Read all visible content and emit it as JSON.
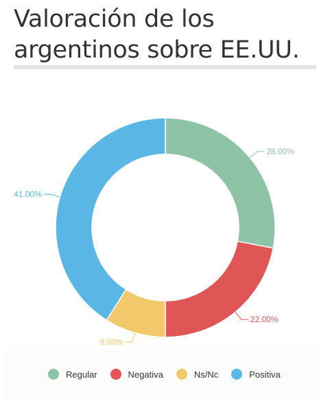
{
  "chart_data": {
    "type": "pie",
    "variant": "donut",
    "title": "Valoración de los argentinos sobre EE.UU.",
    "slices": [
      {
        "label": "Regular",
        "value": 28.0,
        "value_label": "28.00%",
        "color": "#8fc3a6"
      },
      {
        "label": "Negativa",
        "value": 22.0,
        "value_label": "22.00%",
        "color": "#e05555"
      },
      {
        "label": "Ns/Nc",
        "value": 9.0,
        "value_label": "9.00%",
        "color": "#f2c96a"
      },
      {
        "label": "Positiva",
        "value": 41.0,
        "value_label": "41.00%",
        "color": "#5ab6e4"
      }
    ],
    "legend_position": "bottom"
  }
}
